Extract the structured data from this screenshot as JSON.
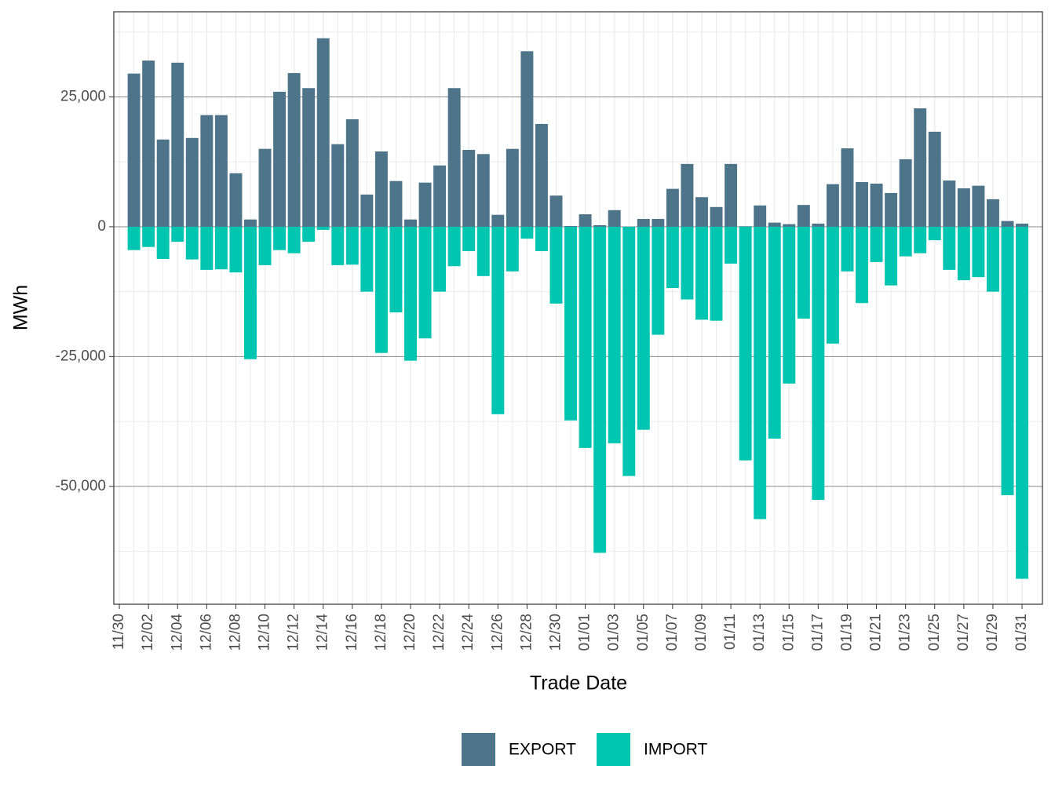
{
  "chart_data": {
    "type": "bar",
    "x_label": "Trade Date",
    "y_label": "MWh",
    "categories": [
      "11/30",
      null,
      "12/02",
      null,
      "12/04",
      null,
      "12/06",
      null,
      "12/08",
      null,
      "12/10",
      null,
      "12/12",
      null,
      "12/14",
      null,
      "12/16",
      null,
      "12/18",
      null,
      "12/20",
      null,
      "12/22",
      null,
      "12/24",
      null,
      "12/26",
      null,
      "12/28",
      null,
      "12/30",
      null,
      "01/01",
      null,
      "01/03",
      null,
      "01/05",
      null,
      "01/07",
      null,
      "01/09",
      null,
      "01/11",
      null,
      "01/13",
      null,
      "01/15",
      null,
      "01/17",
      null,
      "01/19",
      null,
      "01/21",
      null,
      "01/23",
      null,
      "01/25",
      null,
      "01/27",
      null,
      "01/29",
      null,
      "01/31"
    ],
    "series": [
      {
        "name": "EXPORT",
        "color": "#4e7489",
        "values": [
          null,
          29500,
          32000,
          16800,
          31600,
          17100,
          21500,
          21500,
          10300,
          1400,
          15000,
          26000,
          29600,
          26700,
          36300,
          15900,
          20700,
          6200,
          14500,
          8800,
          1400,
          8500,
          11800,
          26700,
          14800,
          14000,
          2300,
          15000,
          33800,
          19800,
          6000,
          150,
          2400,
          300,
          3200,
          0,
          1500,
          1500,
          7300,
          12100,
          5700,
          3800,
          12100,
          100,
          4100,
          800,
          500,
          4200,
          600,
          8200,
          15100,
          8600,
          8300,
          6500,
          13000,
          22800,
          18300,
          8900,
          7400,
          7900,
          5300,
          1100,
          600
        ]
      },
      {
        "name": "IMPORT",
        "color": "#00c5b0",
        "values": [
          null,
          -4500,
          -3900,
          -6200,
          -2900,
          -6300,
          -8300,
          -8200,
          -8800,
          -25500,
          -7400,
          -4500,
          -5100,
          -2900,
          -600,
          -7400,
          -7300,
          -12500,
          -24300,
          -16500,
          -25800,
          -21500,
          -12500,
          -7600,
          -4700,
          -9500,
          -36100,
          -8600,
          -2300,
          -4700,
          -14800,
          -37300,
          -42600,
          -62800,
          -41700,
          -48000,
          -39100,
          -20800,
          -11800,
          -14000,
          -17900,
          -18100,
          -7100,
          -45000,
          -56300,
          -40800,
          -30200,
          -17700,
          -52600,
          -22500,
          -8600,
          -14700,
          -6800,
          -11300,
          -5700,
          -5100,
          -2600,
          -8300,
          -10300,
          -9700,
          -12500,
          -51700,
          -67800
        ]
      }
    ],
    "ylim": [
      -72700,
      41400
    ],
    "yticks": [
      {
        "value": -50000,
        "label": "-50,000"
      },
      {
        "value": -25000,
        "label": "-25,000"
      },
      0,
      {
        "value": 25000,
        "label": "25,000"
      }
    ],
    "yminorticks": [
      -62500,
      -37500,
      -12500,
      12500,
      37500
    ],
    "grid": true,
    "legend": "bottom"
  }
}
